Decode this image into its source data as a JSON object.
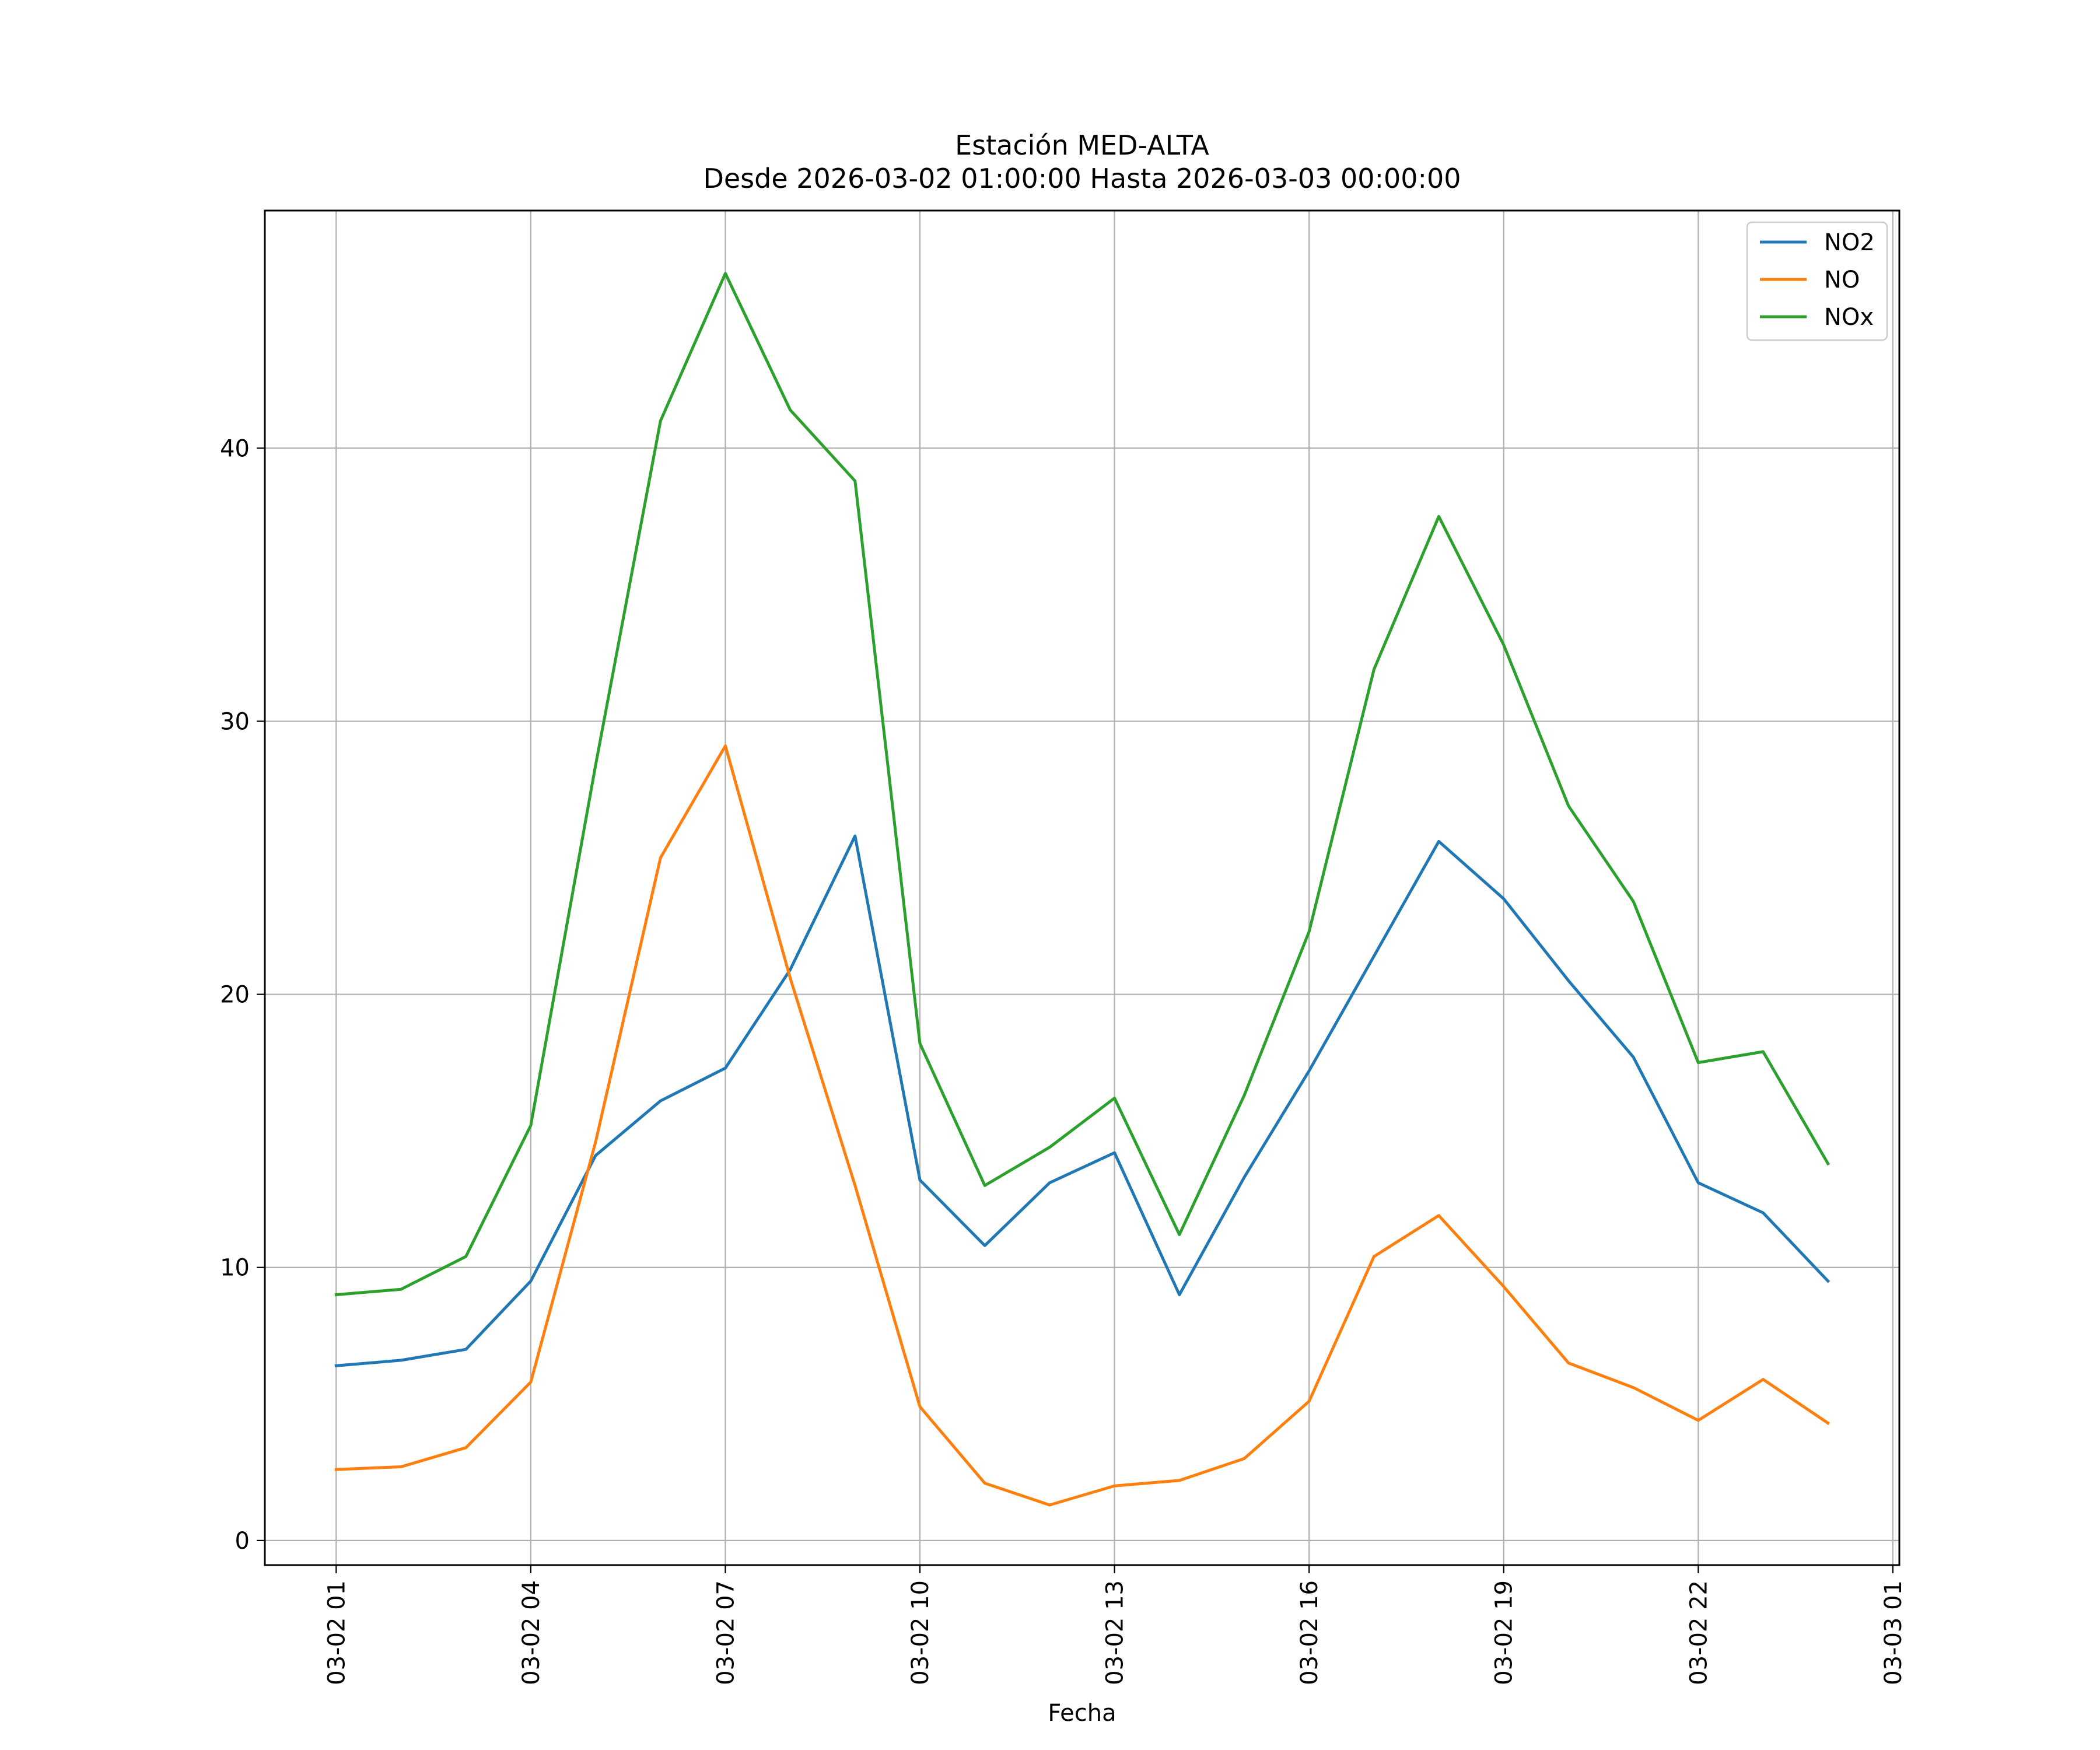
{
  "chart_data": {
    "type": "line",
    "title": "Estación MED-ALTA",
    "subtitle": "Desde 2026-03-02 01:00:00 Hasta 2026-03-03 00:00:00",
    "xlabel": "Fecha",
    "ylabel": "",
    "x_hours": [
      1,
      2,
      3,
      4,
      5,
      6,
      7,
      8,
      9,
      10,
      11,
      12,
      13,
      14,
      15,
      16,
      17,
      18,
      19,
      20,
      21,
      22,
      23,
      24
    ],
    "xlim": [
      -0.1,
      25.1
    ],
    "ylim": [
      -0.9,
      48.7
    ],
    "x_ticks": [
      {
        "hour": 1,
        "label": "03-02 01"
      },
      {
        "hour": 4,
        "label": "03-02 04"
      },
      {
        "hour": 7,
        "label": "03-02 07"
      },
      {
        "hour": 10,
        "label": "03-02 10"
      },
      {
        "hour": 13,
        "label": "03-02 13"
      },
      {
        "hour": 16,
        "label": "03-02 16"
      },
      {
        "hour": 19,
        "label": "03-02 19"
      },
      {
        "hour": 22,
        "label": "03-02 22"
      },
      {
        "hour": 25,
        "label": "03-03 01"
      }
    ],
    "y_ticks": [
      0,
      10,
      20,
      30,
      40
    ],
    "grid": true,
    "legend_position": "top-right",
    "series": [
      {
        "name": "NO2",
        "color": "#1f77b4",
        "values": [
          6.4,
          6.6,
          7.0,
          9.5,
          14.1,
          16.1,
          17.3,
          20.9,
          25.8,
          13.2,
          10.8,
          13.1,
          14.2,
          9.0,
          13.3,
          17.2,
          21.4,
          25.6,
          23.5,
          20.5,
          17.7,
          13.1,
          12.0,
          9.5
        ]
      },
      {
        "name": "NO",
        "color": "#ff7f0e",
        "values": [
          2.6,
          2.7,
          3.4,
          5.8,
          14.6,
          25.0,
          29.1,
          20.6,
          13.0,
          4.9,
          2.1,
          1.3,
          2.0,
          2.2,
          3.0,
          5.1,
          10.4,
          11.9,
          9.3,
          6.5,
          5.6,
          4.4,
          5.9,
          4.3
        ]
      },
      {
        "name": "NOx",
        "color": "#2ca02c",
        "values": [
          9.0,
          9.2,
          10.4,
          15.2,
          28.4,
          41.0,
          46.4,
          41.4,
          38.8,
          18.2,
          13.0,
          14.4,
          16.2,
          11.2,
          16.3,
          22.3,
          31.9,
          37.5,
          32.8,
          26.9,
          23.4,
          17.5,
          17.9,
          13.8
        ]
      }
    ]
  }
}
